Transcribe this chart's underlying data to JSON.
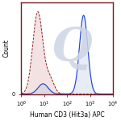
{
  "title": "",
  "xlabel": "Human CD3 (Hit3a) APC",
  "ylabel": "Count",
  "background_color": "#ffffff",
  "border_color": "#7a1a1a",
  "isotype_color": "#8B2020",
  "sample_color": "#2244cc",
  "isotype_fill_color": "#d9a0a0",
  "sample_fill_color": "#aabbdd",
  "xlabel_fontsize": 5.5,
  "ylabel_fontsize": 5.5,
  "tick_fontsize": 4.8,
  "watermark_color": "#cdd5e5",
  "watermark_text": "Q",
  "iso_mean": 0.72,
  "iso_std": 0.22,
  "iso_std2": 0.18,
  "iso_peak2_mean": 1.25,
  "iso_peak2_amp": 0.18,
  "iso_scale": 0.92,
  "samp_mean": 2.72,
  "samp_std": 0.18,
  "samp_std2": 0.13,
  "samp_peak2_mean": 0.95,
  "samp_peak2_amp": 0.13,
  "samp_scale": 0.88
}
